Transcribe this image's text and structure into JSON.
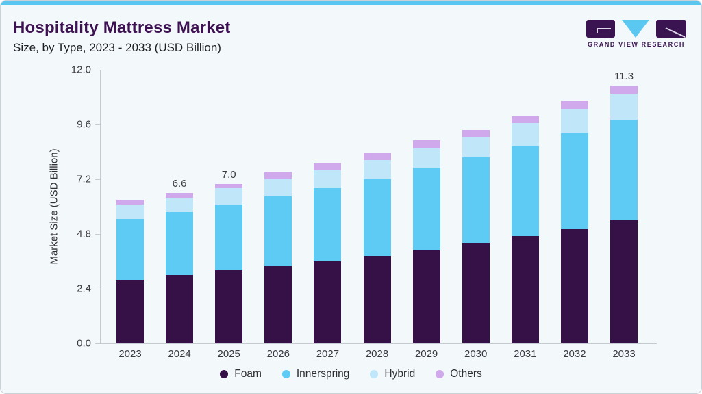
{
  "header": {
    "title": "Hospitality Mattress Market",
    "subtitle": "Size, by Type, 2023 - 2033 (USD Billion)"
  },
  "logo": {
    "name": "grand-view-research-logo",
    "text": "GRAND VIEW RESEARCH",
    "purple": "#3a1450",
    "blue": "#5bc8f2"
  },
  "colors": {
    "card_background": "#f3f8fb",
    "top_bar": "#5bc7f1",
    "title_text": "#3d1152",
    "axis_line": "#c6cbd2"
  },
  "chart_data": {
    "type": "bar",
    "stacked": true,
    "title": "Hospitality Mattress Market Size, by Type, 2023 - 2033 (USD Billion)",
    "ylabel": "Market Size (USD Billion)",
    "xlabel": "",
    "ylim": [
      0,
      12
    ],
    "yticks": [
      "0.0",
      "2.4",
      "4.8",
      "7.2",
      "9.6",
      "12.0"
    ],
    "grid": false,
    "legend_position": "bottom",
    "categories": [
      "2023",
      "2024",
      "2025",
      "2026",
      "2027",
      "2028",
      "2029",
      "2030",
      "2031",
      "2032",
      "2033"
    ],
    "series": [
      {
        "name": "Foam",
        "color": "#351148",
        "values": [
          2.8,
          3.0,
          3.2,
          3.4,
          3.6,
          3.85,
          4.1,
          4.4,
          4.7,
          5.0,
          5.4
        ]
      },
      {
        "name": "Innerspring",
        "color": "#5ecbf4",
        "values": [
          2.65,
          2.75,
          2.9,
          3.05,
          3.2,
          3.35,
          3.6,
          3.75,
          3.95,
          4.2,
          4.4
        ]
      },
      {
        "name": "Hybrid",
        "color": "#bfe7f9",
        "values": [
          0.63,
          0.65,
          0.7,
          0.75,
          0.8,
          0.85,
          0.85,
          0.9,
          1.0,
          1.05,
          1.15
        ]
      },
      {
        "name": "Others",
        "color": "#d0a9ec",
        "values": [
          0.22,
          0.2,
          0.2,
          0.3,
          0.3,
          0.3,
          0.35,
          0.3,
          0.3,
          0.4,
          0.35
        ]
      }
    ],
    "totals": [
      6.3,
      6.6,
      7.0,
      7.5,
      7.9,
      8.35,
      8.9,
      9.35,
      9.95,
      10.65,
      11.3
    ],
    "value_labels": [
      "",
      "6.6",
      "7.0",
      "",
      "",
      "",
      "",
      "",
      "",
      "",
      "11.3"
    ]
  }
}
